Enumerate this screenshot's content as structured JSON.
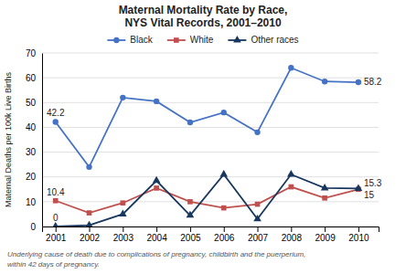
{
  "chart_data": {
    "type": "line",
    "title": "Maternal Mortality Rate by Race,",
    "subtitle": "NYS Vital Records, 2001–2010",
    "y_label": "Maternal Deaths per 100k Live Births",
    "x": [
      2001,
      2002,
      2003,
      2004,
      2005,
      2006,
      2007,
      2008,
      2009,
      2010
    ],
    "series": [
      {
        "name": "Black",
        "color": "#4472C4",
        "marker": "circle",
        "values": [
          42.2,
          24.0,
          52.0,
          50.5,
          42.0,
          46.0,
          38.0,
          64.0,
          58.5,
          58.2
        ]
      },
      {
        "name": "White",
        "color": "#C0504D",
        "marker": "square",
        "values": [
          10.4,
          5.5,
          9.5,
          15.5,
          10.0,
          7.5,
          9.0,
          16.0,
          11.5,
          15.0
        ]
      },
      {
        "name": "Other races",
        "color": "#17375E",
        "marker": "triangle",
        "values": [
          0.0,
          0.5,
          5.0,
          18.5,
          4.5,
          21.0,
          3.0,
          21.0,
          15.5,
          15.3
        ]
      }
    ],
    "xlim": [
      2000.6,
      2010.6
    ],
    "xticks": [
      2001,
      2002,
      2003,
      2004,
      2005,
      2006,
      2007,
      2008,
      2009,
      2010
    ],
    "ylim": [
      0,
      70
    ],
    "yticks": [
      0,
      10,
      20,
      30,
      40,
      50,
      60,
      70
    ],
    "grid": true,
    "legend": "top",
    "annotations": [
      {
        "text": "42.2",
        "x": 2001,
        "y": 42.2
      },
      {
        "text": "10.4",
        "x": 2001,
        "y": 10.4
      },
      {
        "text": "0",
        "x": 2001,
        "y": 0.0
      },
      {
        "text": "58.2",
        "x": 2010,
        "y": 58.2
      },
      {
        "text": "15.3",
        "x": 2010,
        "y": 15.3
      },
      {
        "text": "15",
        "x": 2010,
        "y": 15.0
      }
    ],
    "footnote": [
      "Underlying cause of death due to complications of pregnancy, childbirth and the puerperium,",
      "within 42 days of pregnancy."
    ]
  }
}
